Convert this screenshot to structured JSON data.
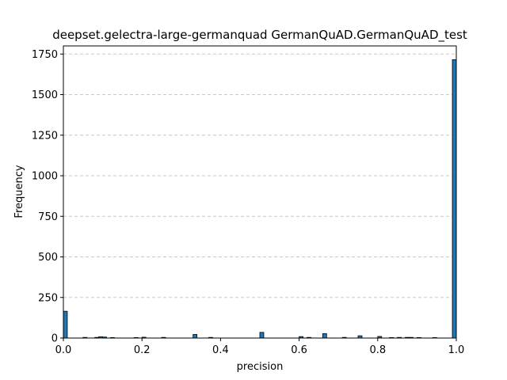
{
  "chart_data": {
    "type": "bar",
    "title": "deepset.gelectra-large-germanquad GermanQuAD.GermanQuAD_test",
    "xlabel": "precision",
    "ylabel": "Frequency",
    "xlim": [
      0,
      1
    ],
    "ylim": [
      0,
      1800
    ],
    "x_ticks": [
      "0.0",
      "0.2",
      "0.4",
      "0.6",
      "0.8",
      "1.0"
    ],
    "x_tick_values": [
      0,
      0.2,
      0.4,
      0.6,
      0.8,
      1.0
    ],
    "y_ticks": [
      "0",
      "250",
      "500",
      "750",
      "1000",
      "1250",
      "1500",
      "1750"
    ],
    "y_tick_values": [
      0,
      250,
      500,
      750,
      1000,
      1250,
      1500,
      1750
    ],
    "grid": "y-dashed",
    "bar_color": "#1f77b4",
    "bin_width": 0.01,
    "bins": [
      {
        "x": 0.0,
        "count": 165
      },
      {
        "x": 0.05,
        "count": 4
      },
      {
        "x": 0.08,
        "count": 4
      },
      {
        "x": 0.09,
        "count": 8
      },
      {
        "x": 0.1,
        "count": 6
      },
      {
        "x": 0.12,
        "count": 3
      },
      {
        "x": 0.18,
        "count": 3
      },
      {
        "x": 0.2,
        "count": 5
      },
      {
        "x": 0.25,
        "count": 4
      },
      {
        "x": 0.33,
        "count": 22
      },
      {
        "x": 0.37,
        "count": 4
      },
      {
        "x": 0.5,
        "count": 35
      },
      {
        "x": 0.6,
        "count": 9
      },
      {
        "x": 0.62,
        "count": 4
      },
      {
        "x": 0.66,
        "count": 27
      },
      {
        "x": 0.71,
        "count": 4
      },
      {
        "x": 0.75,
        "count": 14
      },
      {
        "x": 0.8,
        "count": 10
      },
      {
        "x": 0.83,
        "count": 3
      },
      {
        "x": 0.85,
        "count": 4
      },
      {
        "x": 0.87,
        "count": 4
      },
      {
        "x": 0.88,
        "count": 4
      },
      {
        "x": 0.9,
        "count": 3
      },
      {
        "x": 0.94,
        "count": 3
      },
      {
        "x": 0.99,
        "count": 1715
      }
    ]
  }
}
